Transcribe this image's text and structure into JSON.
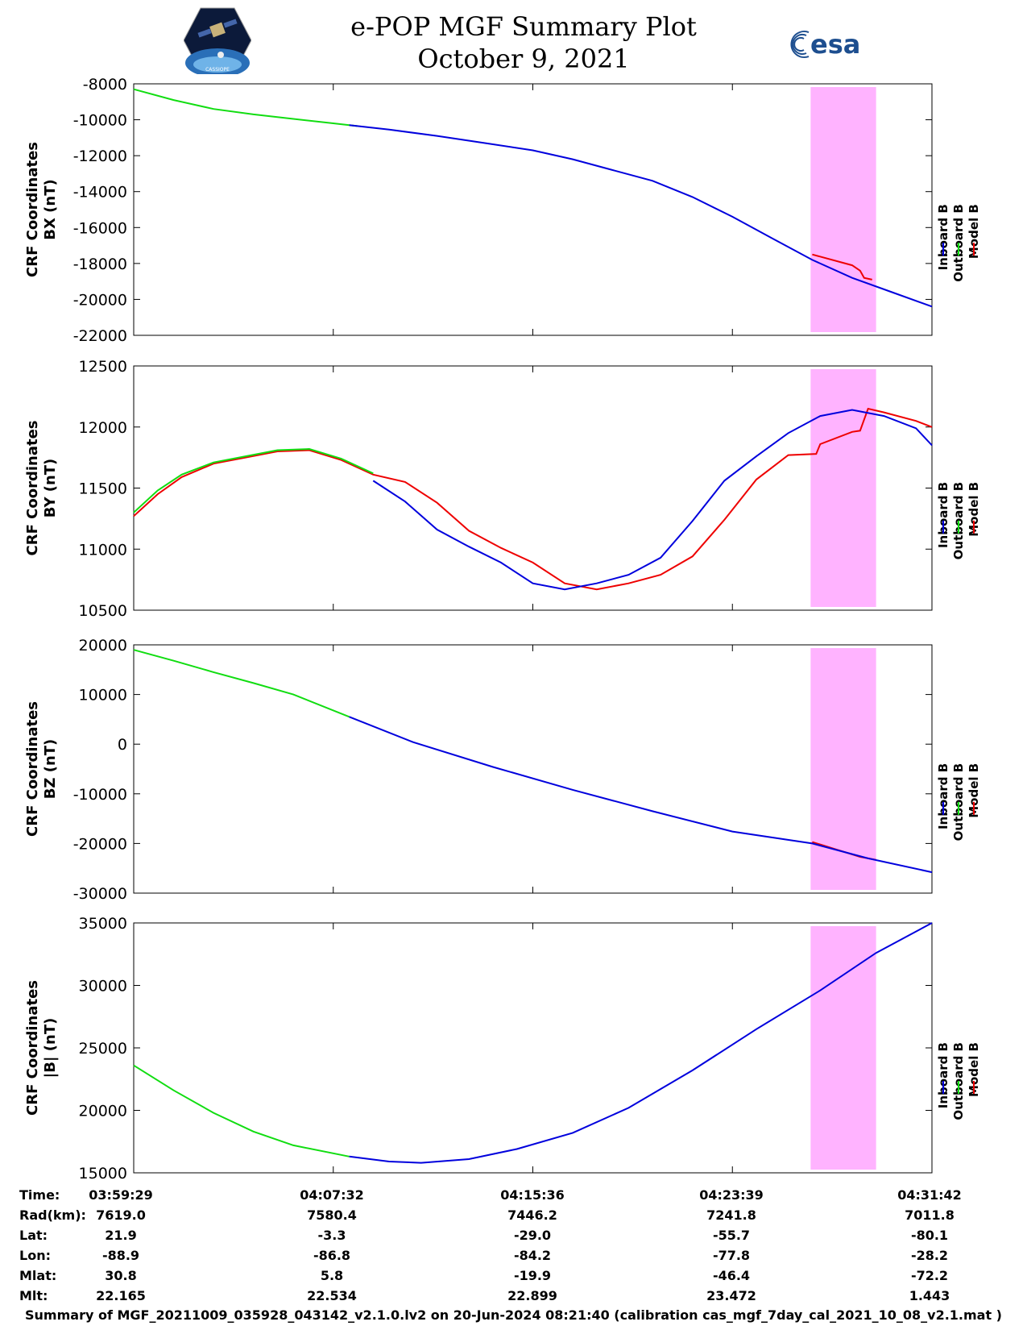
{
  "header": {
    "title": "e-POP MGF Summary Plot",
    "date": "October 9, 2021",
    "logo_left_label": "CASSIOPE",
    "logo_right_label": "esa"
  },
  "colors": {
    "inboard": "#0000dd",
    "outboard": "#11dd11",
    "model": "#ee0000",
    "highlight": "#ffb3ff"
  },
  "chart_data": [
    {
      "type": "line",
      "title": "",
      "ylabel_line1": "CRF Coordinates",
      "ylabel_line2": "BX (nT)",
      "ylim": [
        -22000,
        -8000
      ],
      "yticks": [
        "-8000",
        "-10000",
        "-12000",
        "-14000",
        "-16000",
        "-18000",
        "-20000",
        "-22000"
      ],
      "ytick_values": [
        -8000,
        -10000,
        -12000,
        -14000,
        -16000,
        -18000,
        -20000,
        -22000
      ],
      "xlim": [
        0,
        1
      ]
    },
    {
      "type": "line",
      "ylabel_line1": "CRF Coordinates",
      "ylabel_line2": "BY (nT)",
      "ylim": [
        10500,
        12500
      ],
      "yticks": [
        "12500",
        "12000",
        "11500",
        "11000",
        "10500"
      ],
      "ytick_values": [
        12500,
        12000,
        11500,
        11000,
        10500
      ],
      "xlim": [
        0,
        1
      ]
    },
    {
      "type": "line",
      "ylabel_line1": "CRF Coordinates",
      "ylabel_line2": "BZ (nT)",
      "ylim": [
        -30000,
        20000
      ],
      "yticks": [
        "20000",
        "10000",
        "0",
        "-10000",
        "-20000",
        "-30000"
      ],
      "ytick_values": [
        20000,
        10000,
        0,
        -10000,
        -20000,
        -30000
      ],
      "xlim": [
        0,
        1
      ]
    },
    {
      "type": "line",
      "ylabel_line1": "CRF Coordinates",
      "ylabel_line2": "|B| (nT)",
      "ylim": [
        15000,
        35000
      ],
      "yticks": [
        "35000",
        "30000",
        "25000",
        "20000",
        "15000"
      ],
      "ytick_values": [
        35000,
        30000,
        25000,
        20000,
        15000
      ],
      "xlim": [
        0,
        1
      ]
    }
  ],
  "series_data": {
    "bx": {
      "outboard_x": [
        0,
        0.05,
        0.1,
        0.15,
        0.2,
        0.25,
        0.28
      ],
      "outboard_y": [
        -8300,
        -8900,
        -9400,
        -9700,
        -9950,
        -10200,
        -10350
      ],
      "inboard_x": [
        0.27,
        0.32,
        0.38,
        0.44,
        0.5,
        0.55,
        0.6,
        0.65,
        0.7,
        0.75,
        0.8,
        0.85,
        0.9,
        0.95,
        1.0
      ],
      "inboard_y": [
        -10300,
        -10550,
        -10900,
        -11300,
        -11700,
        -12200,
        -12800,
        -13400,
        -14300,
        -15400,
        -16600,
        -17800,
        -18800,
        -19600,
        -20400
      ],
      "model_x": [
        0.85,
        0.9,
        0.91,
        0.915,
        0.925
      ],
      "model_y": [
        -17500,
        -18100,
        -18400,
        -18800,
        -18900
      ]
    },
    "by": {
      "outboard_x": [
        0,
        0.03,
        0.06,
        0.1,
        0.14,
        0.18,
        0.22,
        0.26,
        0.3
      ],
      "outboard_y": [
        11300,
        11480,
        11610,
        11710,
        11760,
        11810,
        11820,
        11740,
        11620
      ],
      "inboard_x": [
        0.3,
        0.34,
        0.38,
        0.42,
        0.46,
        0.5,
        0.54,
        0.58,
        0.62,
        0.66,
        0.7,
        0.74,
        0.78,
        0.82,
        0.86,
        0.9,
        0.94,
        0.98,
        1.0
      ],
      "inboard_y": [
        11560,
        11390,
        11160,
        11020,
        10890,
        10720,
        10670,
        10720,
        10790,
        10930,
        11230,
        11560,
        11760,
        11950,
        12090,
        12140,
        12090,
        11990,
        11850
      ],
      "model_x": [
        0,
        0.03,
        0.06,
        0.1,
        0.14,
        0.18,
        0.22,
        0.26,
        0.3,
        0.34,
        0.38,
        0.42,
        0.46,
        0.5,
        0.54,
        0.58,
        0.62,
        0.66,
        0.7,
        0.74,
        0.78,
        0.82,
        0.855,
        0.86,
        0.9,
        0.91,
        0.92,
        0.94,
        0.98,
        1.0
      ],
      "model_y": [
        11270,
        11450,
        11590,
        11700,
        11750,
        11800,
        11810,
        11730,
        11610,
        11550,
        11380,
        11150,
        11010,
        10890,
        10720,
        10670,
        10720,
        10790,
        10940,
        11240,
        11570,
        11770,
        11780,
        11860,
        11960,
        11970,
        12150,
        12120,
        12050,
        12000
      ]
    },
    "bz": {
      "outboard_x": [
        0,
        0.05,
        0.1,
        0.15,
        0.2,
        0.27
      ],
      "outboard_y": [
        19000,
        16800,
        14500,
        12300,
        10000,
        5500
      ],
      "inboard_x": [
        0.27,
        0.35,
        0.45,
        0.55,
        0.65,
        0.75,
        0.85,
        0.92,
        1.0
      ],
      "inboard_y": [
        5500,
        400,
        -4600,
        -9200,
        -13500,
        -17600,
        -20000,
        -23000,
        -25800
      ],
      "model_x": [
        0.85,
        0.88,
        0.91,
        0.93
      ],
      "model_y": [
        -19700,
        -21200,
        -22700,
        -23300
      ]
    },
    "bmag": {
      "outboard_x": [
        0,
        0.05,
        0.1,
        0.15,
        0.2,
        0.27
      ],
      "outboard_y": [
        23600,
        21600,
        19800,
        18300,
        17200,
        16300
      ],
      "inboard_x": [
        0.27,
        0.32,
        0.36,
        0.42,
        0.48,
        0.55,
        0.62,
        0.7,
        0.78,
        0.86,
        0.93,
        1.0
      ],
      "inboard_y": [
        16300,
        15900,
        15800,
        16100,
        16900,
        18200,
        20200,
        23200,
        26500,
        29600,
        32600,
        35000
      ],
      "model_x": [],
      "model_y": []
    }
  },
  "highlight": {
    "x_start": 0.848,
    "x_end": 0.93
  },
  "legend": {
    "inboard": "Inboard B",
    "outboard": "Outboard B",
    "model": "Model B"
  },
  "ephemeris": {
    "row_labels": [
      "Time:",
      "Rad(km):",
      "Lat:",
      "Lon:",
      "Mlat:",
      "Mlt:"
    ],
    "columns": [
      [
        "03:59:29",
        "7619.0",
        "21.9",
        "-88.9",
        "30.8",
        "22.165"
      ],
      [
        "04:07:32",
        "7580.4",
        "-3.3",
        "-86.8",
        "5.8",
        "22.534"
      ],
      [
        "04:15:36",
        "7446.2",
        "-29.0",
        "-84.2",
        "-19.9",
        "22.899"
      ],
      [
        "04:23:39",
        "7241.8",
        "-55.7",
        "-77.8",
        "-46.4",
        "23.472"
      ],
      [
        "04:31:42",
        "7011.8",
        "-80.1",
        "-28.2",
        "-72.2",
        "1.443"
      ]
    ]
  },
  "footer": "Summary of MGF_20211009_035928_043142_v2.1.0.lv2 on 20-Jun-2024 08:21:40 (calibration cas_mgf_7day_cal_2021_10_08_v2.1.mat )"
}
